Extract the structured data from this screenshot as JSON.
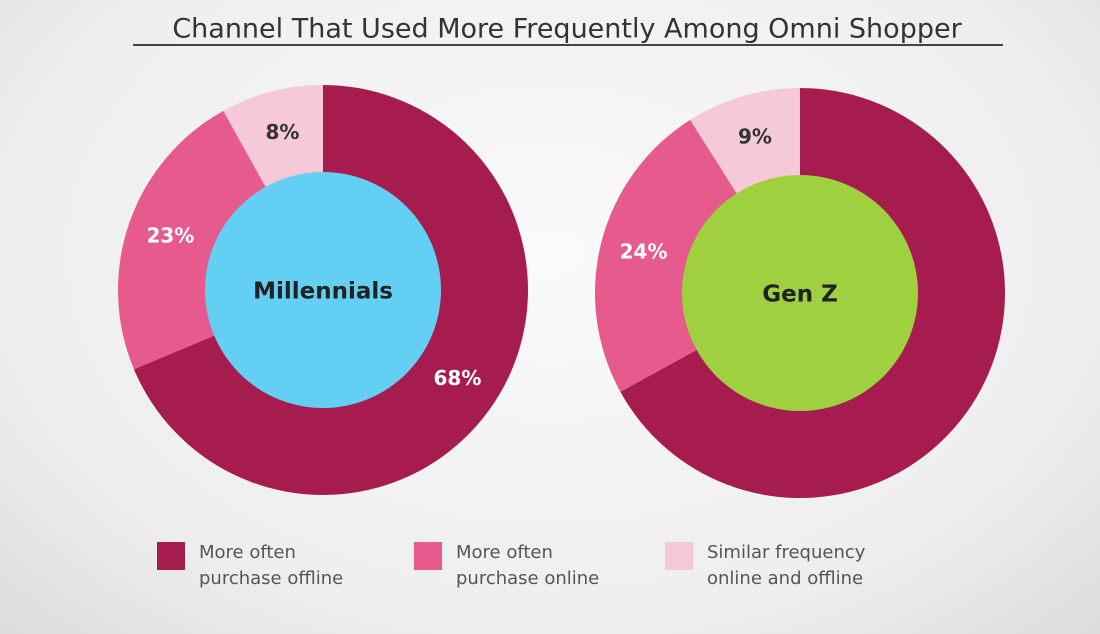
{
  "title": "Channel That Used More Frequently Among Omni Shopper",
  "legend": {
    "labels": [
      "More often purchase offline",
      "More often purchase online",
      "Similar frequency online and offline"
    ],
    "colors": [
      "#a61c4f",
      "#e75a8e",
      "#f5c9d8"
    ]
  },
  "chart_data": [
    {
      "type": "pie",
      "center_label": "Millennials",
      "center_color": "#63cff3",
      "values": [
        68,
        23,
        8
      ],
      "value_labels": [
        "68%",
        "23%",
        "8%"
      ]
    },
    {
      "type": "pie",
      "center_label": "Gen Z",
      "center_color": "#9fd03f",
      "values": [
        67,
        24,
        9
      ],
      "value_labels": [
        null,
        "24%",
        "9%"
      ]
    }
  ]
}
